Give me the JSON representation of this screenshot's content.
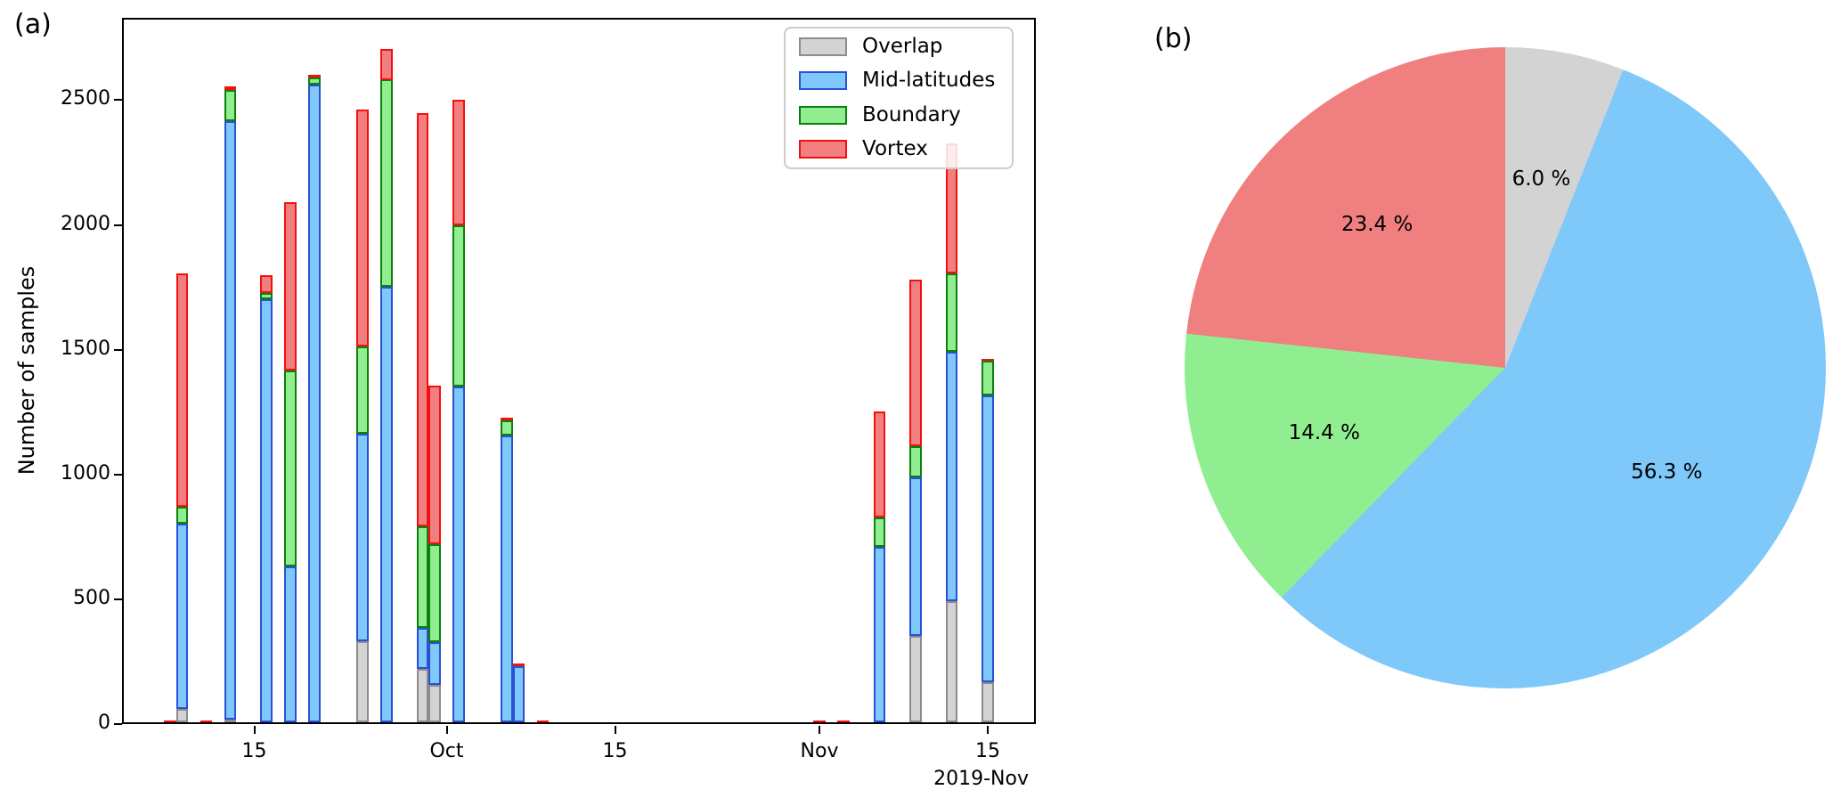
{
  "chart_data": [
    {
      "type": "bar",
      "stacked": true,
      "panel": "(a)",
      "ylabel": "Number of samples",
      "x_offset_label": "2019-Nov",
      "ylim": [
        0,
        2830
      ],
      "yticks": [
        0,
        500,
        1000,
        1500,
        2000,
        2500
      ],
      "x_range": [
        "2019-09-04",
        "2019-11-19"
      ],
      "xticks": [
        {
          "date": "2019-09-15",
          "label": "15"
        },
        {
          "date": "2019-10-01",
          "label": "Oct"
        },
        {
          "date": "2019-10-15",
          "label": "15"
        },
        {
          "date": "2019-11-01",
          "label": "Nov"
        },
        {
          "date": "2019-11-15",
          "label": "15"
        }
      ],
      "legend_position": "upper right",
      "x": [
        "2019-09-08",
        "2019-09-09",
        "2019-09-11",
        "2019-09-13",
        "2019-09-16",
        "2019-09-18",
        "2019-09-20",
        "2019-09-24",
        "2019-09-26",
        "2019-09-29",
        "2019-09-30",
        "2019-10-02",
        "2019-10-06",
        "2019-10-07",
        "2019-10-09",
        "2019-11-01",
        "2019-11-03",
        "2019-11-06",
        "2019-11-09",
        "2019-11-12",
        "2019-11-15"
      ],
      "series": [
        {
          "name": "Overlap",
          "values": [
            0,
            55,
            0,
            10,
            0,
            0,
            0,
            325,
            0,
            215,
            150,
            0,
            0,
            0,
            0,
            0,
            0,
            0,
            345,
            485,
            160
          ]
        },
        {
          "name": "Mid-latitudes",
          "values": [
            0,
            740,
            0,
            2400,
            1695,
            625,
            2555,
            830,
            1745,
            165,
            170,
            1345,
            1150,
            225,
            0,
            0,
            0,
            705,
            635,
            1000,
            1150
          ]
        },
        {
          "name": "Boundary",
          "values": [
            0,
            70,
            0,
            125,
            25,
            785,
            28,
            350,
            830,
            405,
            395,
            645,
            60,
            0,
            0,
            0,
            0,
            115,
            125,
            315,
            140
          ]
        },
        {
          "name": "Vortex",
          "values": [
            8,
            935,
            8,
            15,
            70,
            675,
            12,
            950,
            125,
            1655,
            635,
            505,
            10,
            10,
            8,
            8,
            8,
            425,
            670,
            520,
            5
          ]
        }
      ],
      "styles": {
        "Overlap": {
          "fill": "#d3d3d3",
          "edge": "#8c8c8c"
        },
        "Mid-latitudes": {
          "fill": "#7ec8fa",
          "edge": "#2b50d5"
        },
        "Boundary": {
          "fill": "#90ee90",
          "edge": "#0b800b"
        },
        "Vortex": {
          "fill": "#f08080",
          "edge": "#f50f0f"
        }
      }
    },
    {
      "type": "pie",
      "panel": "(b)",
      "start_angle_deg": 90,
      "direction": "clockwise",
      "label_distance": 0.6,
      "slices": [
        {
          "label": "Overlap",
          "value_pct": 6.0,
          "text": "6.0 %",
          "color": "#d3d3d3"
        },
        {
          "label": "Mid-latitudes",
          "value_pct": 56.3,
          "text": "56.3 %",
          "color": "#7ec8fa"
        },
        {
          "label": "Boundary",
          "value_pct": 14.4,
          "text": "14.4 %",
          "color": "#90ee90"
        },
        {
          "label": "Vortex",
          "value_pct": 23.4,
          "text": "23.4 %",
          "color": "#f08080"
        }
      ]
    }
  ]
}
